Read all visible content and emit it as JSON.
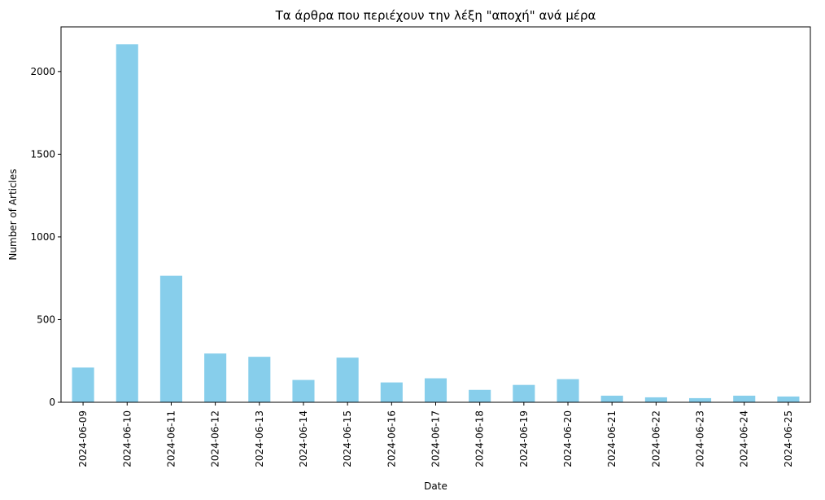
{
  "chart_data": {
    "type": "bar",
    "title": "Τα άρθρα που περιέχουν την λέξη \"αποχή\" ανά μέρα",
    "xlabel": "Date",
    "ylabel": "Number of Articles",
    "categories": [
      "2024-06-09",
      "2024-06-10",
      "2024-06-11",
      "2024-06-12",
      "2024-06-13",
      "2024-06-14",
      "2024-06-15",
      "2024-06-16",
      "2024-06-17",
      "2024-06-18",
      "2024-06-19",
      "2024-06-20",
      "2024-06-21",
      "2024-06-22",
      "2024-06-23",
      "2024-06-24",
      "2024-06-25"
    ],
    "values": [
      210,
      2165,
      765,
      295,
      275,
      135,
      270,
      120,
      145,
      75,
      105,
      140,
      40,
      30,
      25,
      40,
      35
    ],
    "ylim": [
      0,
      2270
    ],
    "yticks": [
      0,
      500,
      1000,
      1500,
      2000
    ],
    "bar_color": "#87ceeb",
    "grid": false,
    "legend": "none"
  }
}
